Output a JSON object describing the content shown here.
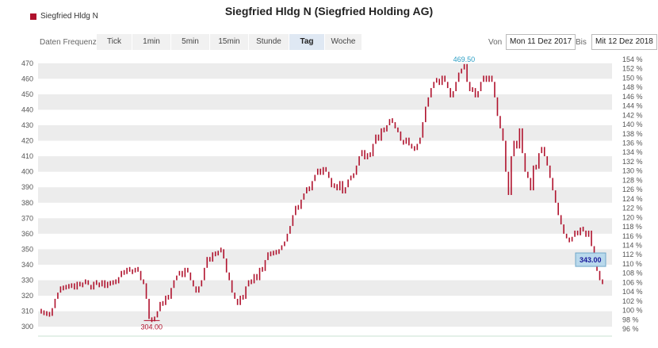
{
  "title": "Siegfried Hldg N (Siegfried Holding AG)",
  "legend": {
    "label": "Siegfried Hldg N",
    "color": "#b0122d"
  },
  "controls": {
    "frequency_label": "Daten Frequenz",
    "frequencies": [
      "Tick",
      "1min",
      "5min",
      "15min",
      "Stunde",
      "Tag",
      "Woche"
    ],
    "active_frequency": "Tag",
    "from_label": "Von",
    "from_value": "Mon 11 Dez 2017",
    "to_label": "Bis",
    "to_value": "Mit 12 Dez 2018"
  },
  "chart_data": {
    "type": "line",
    "x_start": "Mon 11 Dez 2017",
    "x_end": "Mit 12 Dez 2018",
    "y_ticks": [
      300,
      310,
      320,
      330,
      340,
      350,
      360,
      370,
      380,
      390,
      400,
      410,
      420,
      430,
      440,
      450,
      460,
      470
    ],
    "y_right_ticks": [
      "96 %",
      "98 %",
      "100 %",
      "102 %",
      "104 %",
      "106 %",
      "108 %",
      "110 %",
      "112 %",
      "114 %",
      "116 %",
      "118 %",
      "120 %",
      "122 %",
      "124 %",
      "126 %",
      "128 %",
      "130 %",
      "132 %",
      "134 %",
      "136 %",
      "138 %",
      "140 %",
      "142 %",
      "144 %",
      "146 %",
      "148 %",
      "150 %",
      "152 %",
      "154 %"
    ],
    "ylim": [
      297,
      474
    ],
    "y_right_lim": [
      95.5,
      154.5
    ],
    "grid": true,
    "series": [
      {
        "name": "Siegfried Hldg N",
        "color": "#b0122d",
        "values": [
          310,
          308,
          309,
          307,
          312,
          318,
          322,
          326,
          324,
          327,
          325,
          328,
          324,
          329,
          326,
          328,
          330,
          327,
          324,
          329,
          328,
          326,
          330,
          325,
          329,
          327,
          330,
          328,
          332,
          336,
          334,
          338,
          336,
          335,
          338,
          336,
          330,
          328,
          318,
          305,
          304,
          306,
          310,
          316,
          314,
          320,
          318,
          325,
          330,
          333,
          336,
          332,
          338,
          335,
          330,
          326,
          322,
          326,
          330,
          338,
          345,
          342,
          348,
          346,
          349,
          350,
          344,
          335,
          330,
          322,
          318,
          314,
          320,
          318,
          326,
          330,
          328,
          334,
          330,
          338,
          336,
          343,
          348,
          346,
          349,
          347,
          350,
          352,
          355,
          360,
          365,
          372,
          378,
          376,
          382,
          386,
          390,
          388,
          394,
          398,
          402,
          398,
          403,
          400,
          396,
          390,
          392,
          388,
          394,
          386,
          390,
          395,
          397,
          398,
          404,
          410,
          414,
          408,
          412,
          410,
          418,
          424,
          420,
          428,
          426,
          430,
          434,
          432,
          428,
          426,
          420,
          418,
          422,
          417,
          416,
          414,
          418,
          422,
          432,
          442,
          448,
          454,
          458,
          460,
          456,
          462,
          458,
          454,
          448,
          452,
          458,
          464,
          466,
          469.5,
          458,
          452,
          454,
          448,
          452,
          458,
          462,
          458,
          462,
          458,
          448,
          436,
          428,
          420,
          400,
          385,
          410,
          420,
          415,
          428,
          412,
          400,
          396,
          388,
          404,
          402,
          412,
          416,
          410,
          404,
          396,
          388,
          380,
          372,
          366,
          360,
          357,
          355,
          358,
          362,
          359,
          364,
          362,
          358,
          362,
          352,
          345,
          336,
          330,
          328
        ]
      }
    ],
    "annotations": [
      {
        "label": "469.50",
        "index": 153,
        "value": 469.5,
        "color": "#2a9ec4"
      },
      {
        "label": "304.00",
        "index": 40,
        "value": 304,
        "color": "#b0122d"
      },
      {
        "label": "343.00",
        "value": 343,
        "color": "#1a1a9c",
        "box_color": "#b9d9ec"
      }
    ]
  }
}
